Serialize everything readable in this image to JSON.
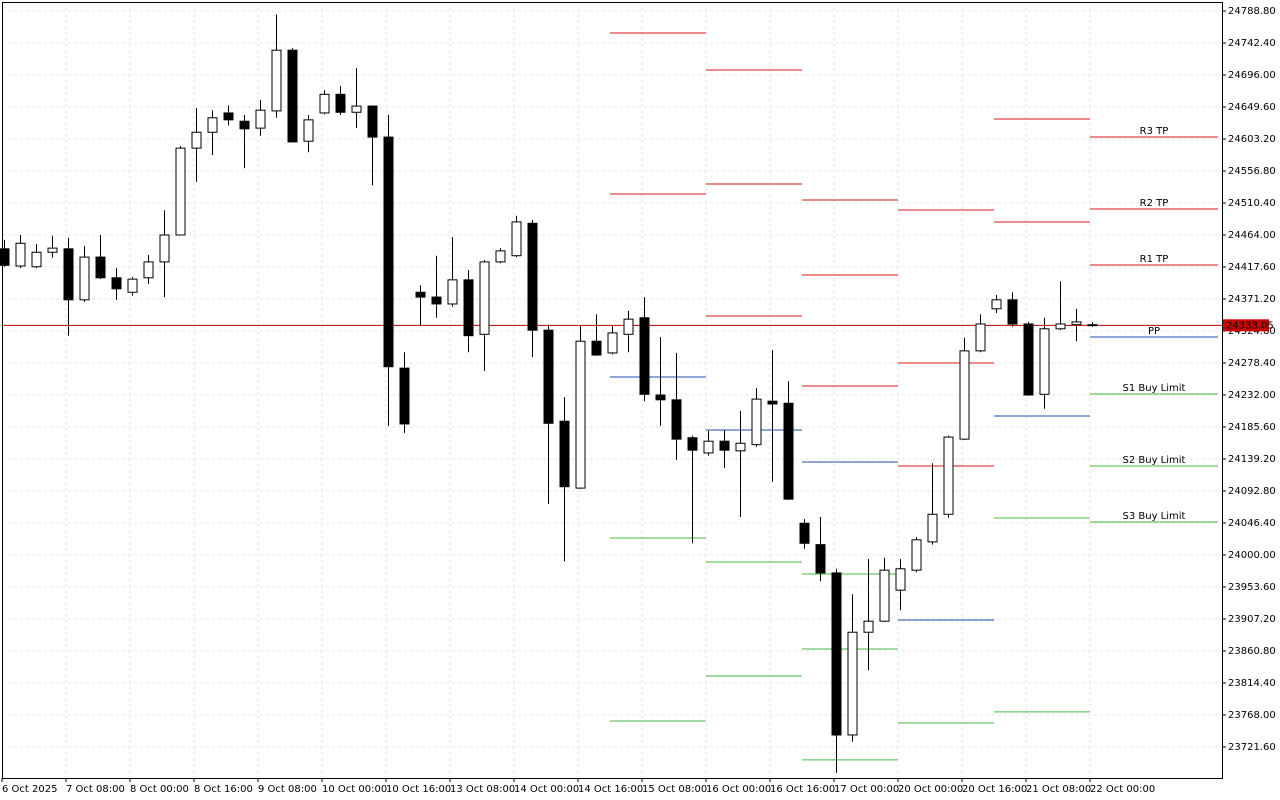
{
  "chart_data": {
    "type": "candlestick",
    "categories": [
      "6 Oct 2025",
      null,
      null,
      null,
      "7 Oct 08:00",
      null,
      null,
      null,
      "8 Oct 00:00",
      null,
      null,
      null,
      "8 Oct 16:00",
      null,
      null,
      null,
      "9 Oct 08:00",
      null,
      null,
      null,
      "10 Oct 00:00",
      null,
      null,
      null,
      "10 Oct 16:00",
      null,
      null,
      null,
      "13 Oct 08:00",
      null,
      null,
      null,
      "14 Oct 00:00",
      null,
      null,
      null,
      "14 Oct 16:00",
      null,
      null,
      null,
      "15 Oct 08:00",
      null,
      null,
      null,
      "16 Oct 00:00",
      null,
      null,
      null,
      "16 Oct 16:00",
      null,
      null,
      null,
      "17 Oct 00:00",
      null,
      null,
      null,
      "20 Oct 00:00",
      null,
      null,
      null,
      "20 Oct 16:00",
      null,
      null,
      null,
      "21 Oct 08:00",
      null,
      null,
      null,
      "22 Oct 00:00"
    ],
    "open": [
      24444,
      24419,
      24418,
      24439,
      24444,
      24370,
      24432,
      24402,
      24381,
      24402,
      24425,
      24464,
      24590,
      24613,
      24641,
      24629,
      24619,
      24644,
      24732,
      24600,
      24641,
      24668,
      24642,
      24651,
      24606,
      24271,
      24381,
      24374,
      24364,
      24399,
      24320,
      24425,
      24434,
      24481,
      24326,
      24194,
      24097,
      24310,
      24293,
      24320,
      24344,
      24232,
      24225,
      24170,
      24148,
      24165,
      24151,
      24160,
      24223,
      24220,
      24046,
      24015,
      23974,
      23739,
      23888,
      23904,
      23949,
      23978,
      24019,
      24059,
      24168,
      24296,
      24357,
      24370,
      24335,
      24233,
      24328,
      24334,
      24334
    ],
    "high": [
      24457,
      24464,
      24451,
      24463,
      24460,
      24448,
      24464,
      24416,
      24403,
      24435,
      24500,
      24593,
      24648,
      24645,
      24652,
      24638,
      24660,
      24784,
      24735,
      24638,
      24674,
      24680,
      24706,
      24652,
      24638,
      24294,
      24391,
      24434,
      24461,
      24413,
      24428,
      24445,
      24492,
      24486,
      24334,
      24229,
      24332,
      24349,
      24332,
      24354,
      24374,
      24316,
      24293,
      24173,
      24180,
      24181,
      24209,
      24242,
      24297,
      24252,
      24052,
      24055,
      23980,
      23943,
      23994,
      23996,
      23994,
      24026,
      24133,
      24173,
      24315,
      24349,
      24377,
      24381,
      24338,
      24344,
      24397,
      24357,
      24338
    ],
    "low": [
      24418,
      24416,
      24416,
      24431,
      24318,
      24367,
      24400,
      24370,
      24376,
      24393,
      24374,
      24464,
      24541,
      24580,
      24623,
      24561,
      24608,
      24634,
      24599,
      24584,
      24639,
      24638,
      24619,
      24536,
      24187,
      24177,
      24332,
      24344,
      24360,
      24294,
      24267,
      24423,
      24432,
      24287,
      24074,
      23991,
      24096,
      24289,
      24291,
      24294,
      24223,
      24187,
      24138,
      24017,
      24144,
      24126,
      24055,
      24157,
      24106,
      24080,
      24009,
      23962,
      23684,
      23729,
      23833,
      23903,
      23920,
      23975,
      24015,
      24054,
      24167,
      24294,
      24351,
      24331,
      24231,
      24212,
      24326,
      24310,
      24331
    ],
    "close": [
      24420,
      24452,
      24439,
      24445,
      24370,
      24432,
      24402,
      24386,
      24400,
      24425,
      24464,
      24590,
      24613,
      24634,
      24631,
      24618,
      24645,
      24732,
      24599,
      24631,
      24668,
      24642,
      24651,
      24606,
      24273,
      24190,
      24374,
      24364,
      24399,
      24318,
      24425,
      24441,
      24483,
      24326,
      24191,
      24099,
      24310,
      24290,
      24322,
      24342,
      24233,
      24225,
      24168,
      24152,
      24165,
      24152,
      24162,
      24226,
      24219,
      24081,
      24017,
      23974,
      23739,
      23888,
      23904,
      23978,
      23980,
      24022,
      24059,
      24171,
      24296,
      24335,
      24370,
      24335,
      24232,
      24328,
      24335,
      24338,
      24333.05
    ],
    "up_color": "#ffffff",
    "down_color": "#000000",
    "ylim": [
      23676.6,
      24801.9
    ],
    "yticks": [
      {
        "value": 24788.8,
        "label": "24788.80"
      },
      {
        "value": 24742.4,
        "label": "24742.40"
      },
      {
        "value": 24696,
        "label": "24696.00"
      },
      {
        "value": 24649.6,
        "label": "24649.60"
      },
      {
        "value": 24603.2,
        "label": "24603.20"
      },
      {
        "value": 24556.8,
        "label": "24556.80"
      },
      {
        "value": 24510.4,
        "label": "24510.40"
      },
      {
        "value": 24464,
        "label": "24464.00"
      },
      {
        "value": 24417.6,
        "label": "24417.60"
      },
      {
        "value": 24371.2,
        "label": "24371.20"
      },
      {
        "value": 24324.8,
        "label": "24324.80"
      },
      {
        "value": 24278.4,
        "label": "24278.40"
      },
      {
        "value": 24232,
        "label": "24232.00"
      },
      {
        "value": 24185.6,
        "label": "24185.60"
      },
      {
        "value": 24139.2,
        "label": "24139.20"
      },
      {
        "value": 24092.8,
        "label": "24092.80"
      },
      {
        "value": 24046.4,
        "label": "24046.40"
      },
      {
        "value": 24000,
        "label": "24000.00"
      },
      {
        "value": 23953.6,
        "label": "23953.60"
      },
      {
        "value": 23907.2,
        "label": "23907.20"
      },
      {
        "value": 23860.8,
        "label": "23860.80"
      },
      {
        "value": 23814.4,
        "label": "23814.40"
      },
      {
        "value": 23768,
        "label": "23768.00"
      },
      {
        "value": 23721.6,
        "label": "23721.60"
      }
    ],
    "grid": true,
    "current_price": 24333.05,
    "current_price_color": "#c80000",
    "pivots": {
      "resistance_color": "#d01818",
      "pivot_color": "#1f4fb0",
      "support_color": "#46b846",
      "days": [
        {
          "start": 38,
          "end": 44,
          "resistance": [
            24756.9,
            24523.5
          ],
          "pivot": 24258.1,
          "support": [
            24024.7,
            23759.3
          ]
        },
        {
          "start": 44,
          "end": 50,
          "resistance": [
            24703.3,
            24538.0,
            24346.6
          ],
          "pivot": 24181.3,
          "support": [
            23989.9,
            23824.6
          ]
        },
        {
          "start": 50,
          "end": 56,
          "resistance": [
            24514.8,
            24406.0,
            24245.1
          ],
          "pivot": 24134.9,
          "support": [
            23972.5,
            23863.7,
            23702.8
          ]
        },
        {
          "start": 56,
          "end": 62,
          "resistance": [
            24500.3,
            24278.4,
            24129.1
          ],
          "pivot": 23905.8,
          "support": [
            23756.4
          ]
        },
        {
          "start": 62,
          "end": 68,
          "resistance": [
            24632.2,
            24482.9
          ],
          "pivot": 24201.6,
          "support": [
            24053.7,
            23772.4
          ]
        }
      ],
      "current": {
        "start": 68,
        "levels": [
          {
            "name": "R3 TP",
            "value": 24606.1,
            "color": "#d01818"
          },
          {
            "name": "R2 TP",
            "value": 24501.7,
            "color": "#d01818"
          },
          {
            "name": "R1 TP",
            "value": 24420.5,
            "color": "#d01818"
          },
          {
            "name": "PP",
            "value": 24316.1,
            "color": "#1f4fb0"
          },
          {
            "name": "S1 Buy Limit",
            "value": 24233.5,
            "color": "#46b846"
          },
          {
            "name": "S2 Buy Limit",
            "value": 24129.1,
            "color": "#46b846"
          },
          {
            "name": "S3 Buy Limit",
            "value": 24047.9,
            "color": "#46b846"
          }
        ]
      }
    }
  }
}
